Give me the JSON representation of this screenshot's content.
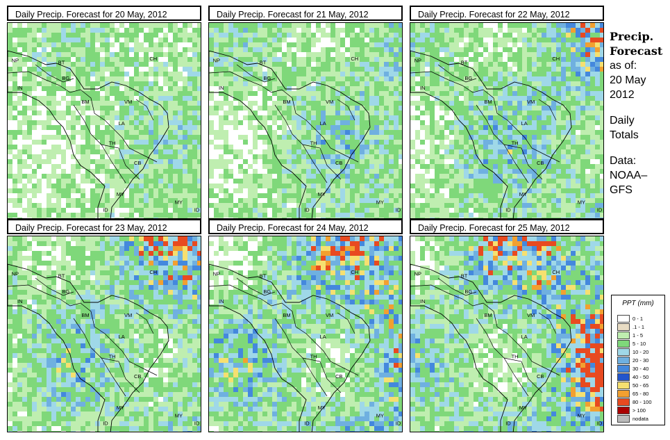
{
  "panels": [
    {
      "title": "Daily Precip. Forecast for  20 May, 2012",
      "intensity": 0.35
    },
    {
      "title": "Daily Precip. Forecast for  21 May, 2012",
      "intensity": 0.45
    },
    {
      "title": "Daily Precip. Forecast for  22 May, 2012",
      "intensity": 0.55
    },
    {
      "title": "Daily Precip. Forecast for  23 May, 2012",
      "intensity": 0.6
    },
    {
      "title": "Daily Precip. Forecast for  24 May, 2012",
      "intensity": 0.7
    },
    {
      "title": "Daily Precip. Forecast for  25 May, 2012",
      "intensity": 0.75
    }
  ],
  "map_labels": [
    "NP",
    "BT",
    "BG",
    "IN",
    "CH",
    "BM",
    "VM",
    "LA",
    "TH",
    "CB",
    "MY",
    "MY",
    "ID",
    "ID"
  ],
  "side": {
    "title_line1": "Precip.",
    "title_line2": "Forecast",
    "asof": "as of:",
    "date_line1": "20 May",
    "date_line2": "2012",
    "daily_line1": "Daily",
    "daily_line2": "Totals",
    "data_line1": "Data:",
    "data_line2": "NOAA–",
    "data_line3": "GFS"
  },
  "legend": {
    "title": "PPT (mm)",
    "entries": [
      {
        "label": "0 - 1",
        "color": "#ffffff"
      },
      {
        "label": ".1 - 1",
        "color": "#e8dcc4"
      },
      {
        "label": "1 - 5",
        "color": "#bfeeb0"
      },
      {
        "label": "5 - 10",
        "color": "#7fd87a"
      },
      {
        "label": "10 - 20",
        "color": "#9fd8e8"
      },
      {
        "label": "20 - 30",
        "color": "#6fb0e0"
      },
      {
        "label": "30 - 40",
        "color": "#4488dd"
      },
      {
        "label": "40 - 50",
        "color": "#2255cc"
      },
      {
        "label": "50 - 65",
        "color": "#f6e070"
      },
      {
        "label": "65 - 80",
        "color": "#f2a030"
      },
      {
        "label": "80 - 100",
        "color": "#e84a20"
      },
      {
        "label": "> 100",
        "color": "#aa0000"
      },
      {
        "label": "nodata",
        "color": "#bbbbbb"
      }
    ]
  }
}
